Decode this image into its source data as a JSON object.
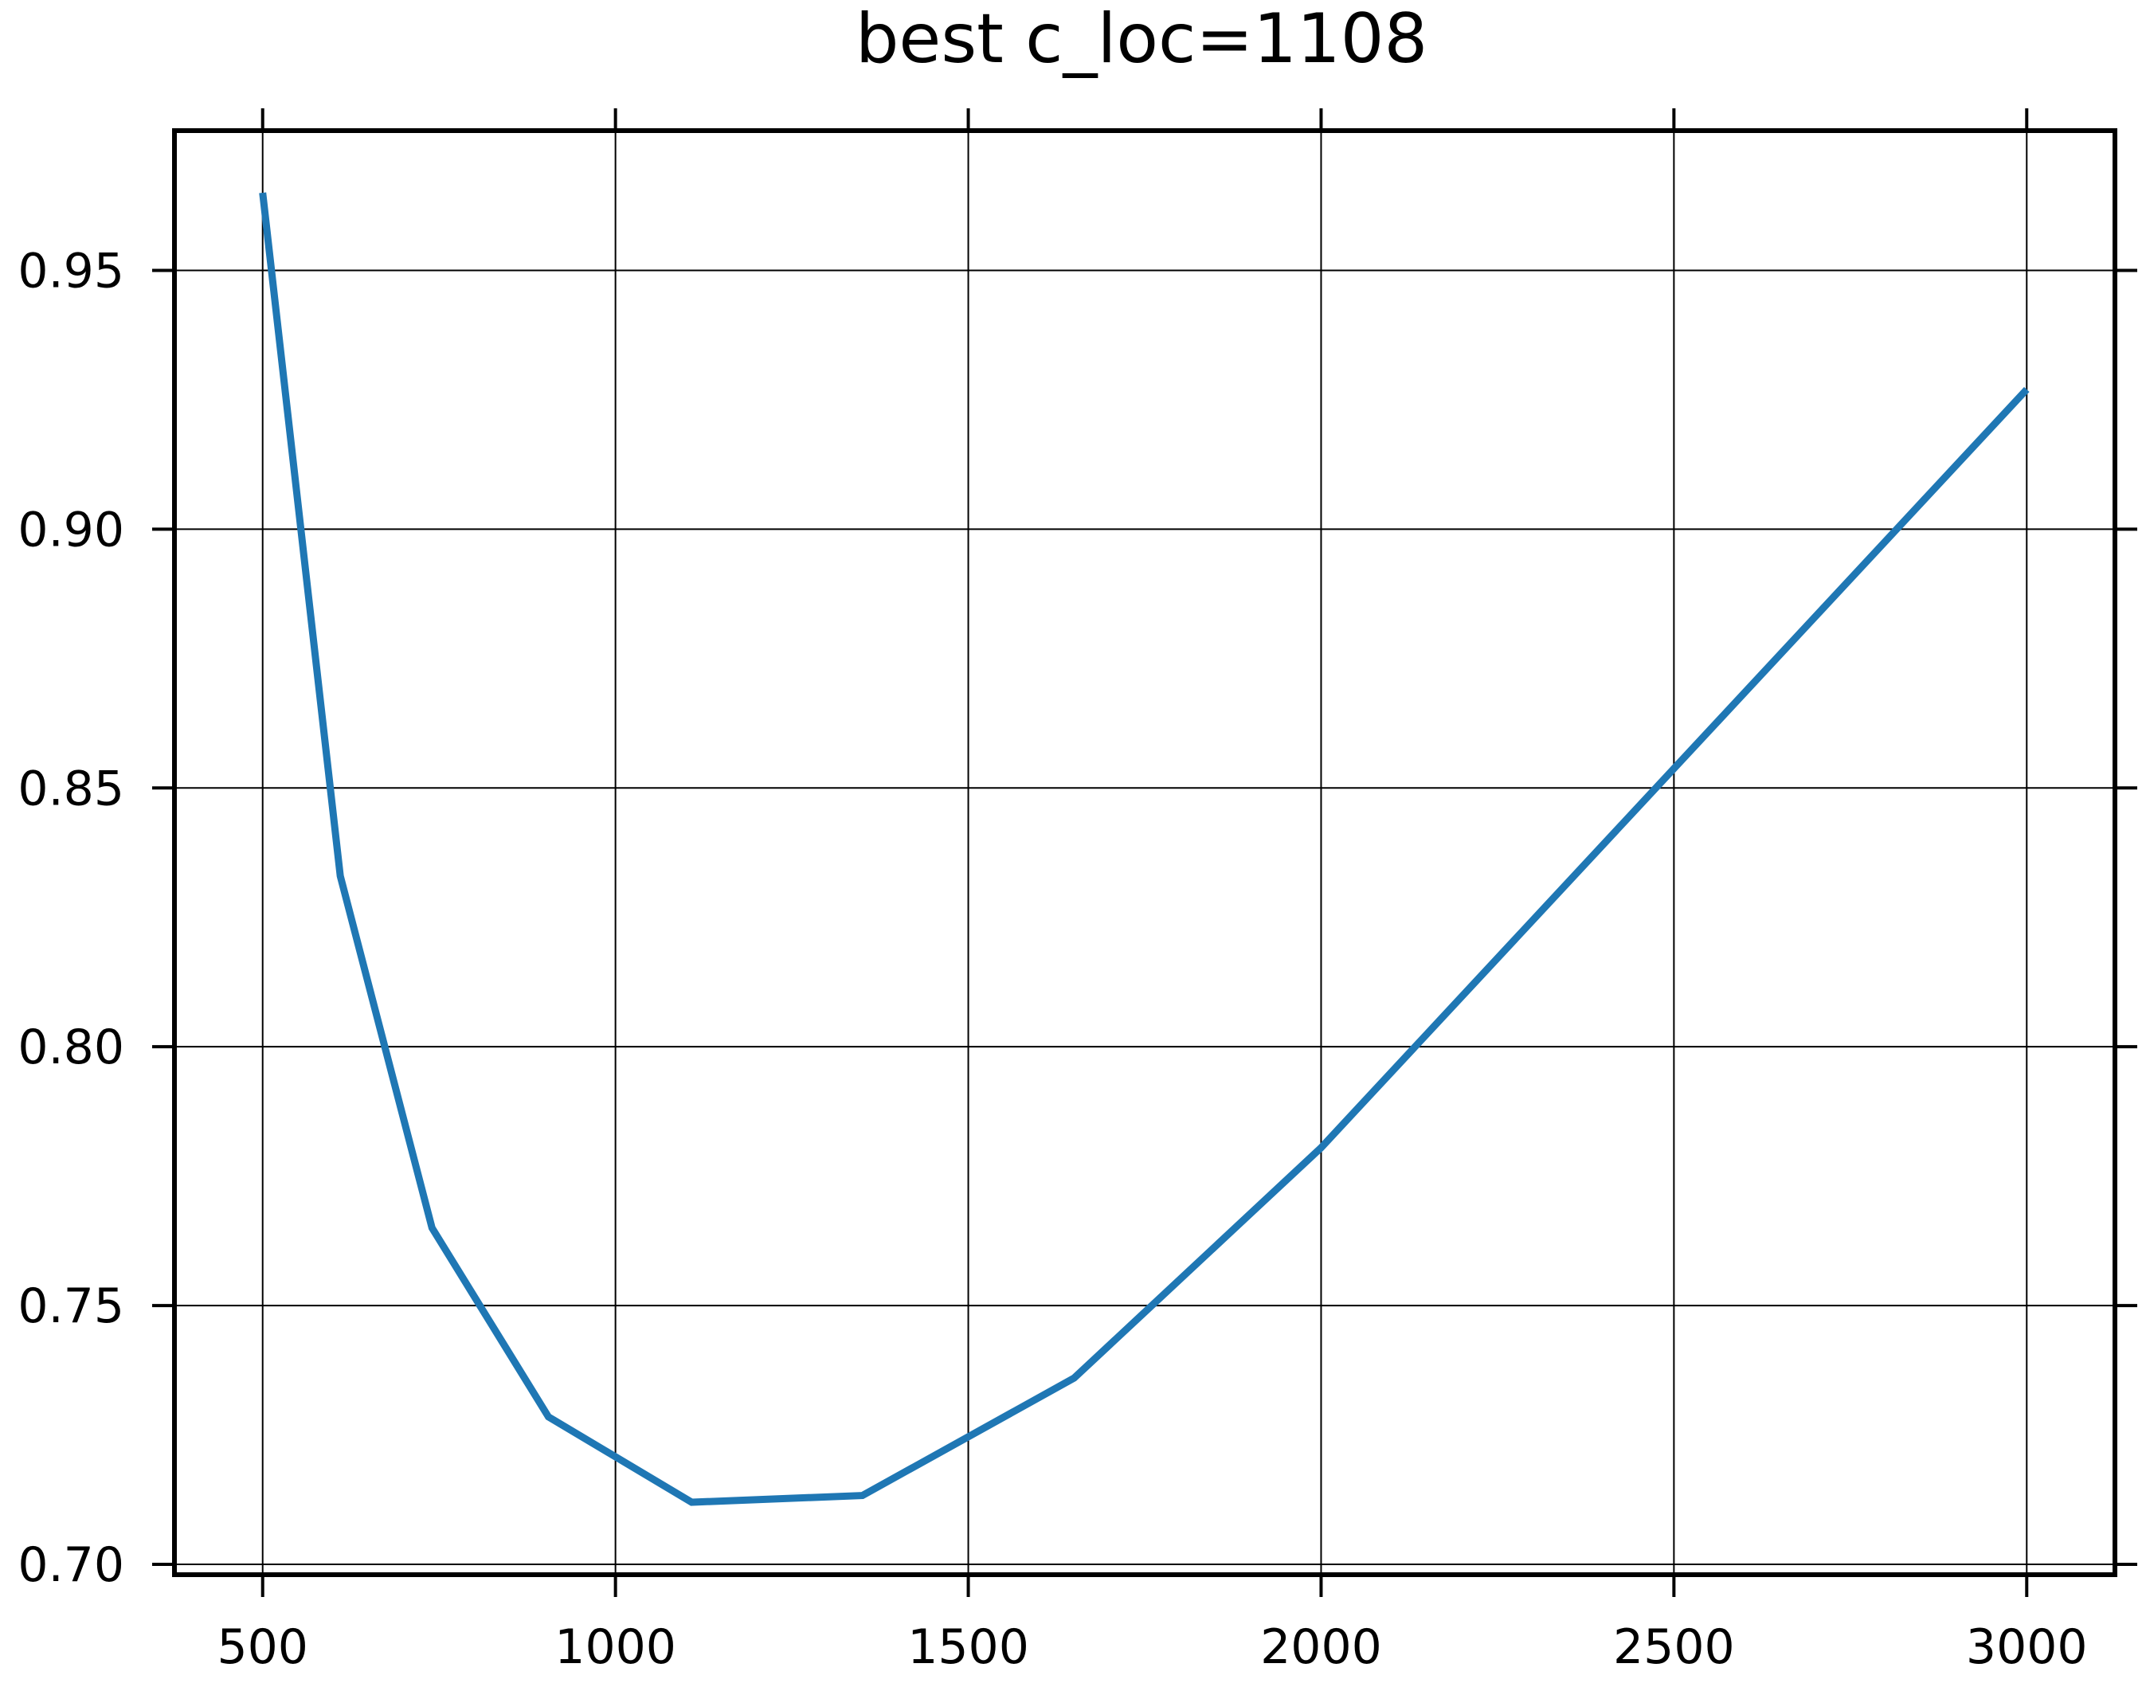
{
  "chart_data": {
    "type": "line",
    "title": "best c_loc=1108",
    "xlabel": "",
    "ylabel": "",
    "xlim": [
      375,
      3125
    ],
    "ylim": [
      0.698,
      0.977
    ],
    "x_ticks": [
      500,
      1000,
      1500,
      2000,
      2500,
      3000
    ],
    "x_tick_labels": [
      "500",
      "1000",
      "1500",
      "2000",
      "2500",
      "3000"
    ],
    "y_ticks": [
      0.7,
      0.75,
      0.8,
      0.85,
      0.9,
      0.95
    ],
    "y_tick_labels": [
      "0.70",
      "0.75",
      "0.80",
      "0.85",
      "0.90",
      "0.95"
    ],
    "grid": true,
    "line_color": "#1f77b4",
    "series": [
      {
        "x": [
          500,
          610,
          740,
          905,
          1108,
          1350,
          1650,
          2000,
          3000
        ],
        "y": [
          0.965,
          0.833,
          0.765,
          0.7285,
          0.712,
          0.7133,
          0.736,
          0.7805,
          0.927
        ]
      }
    ]
  }
}
